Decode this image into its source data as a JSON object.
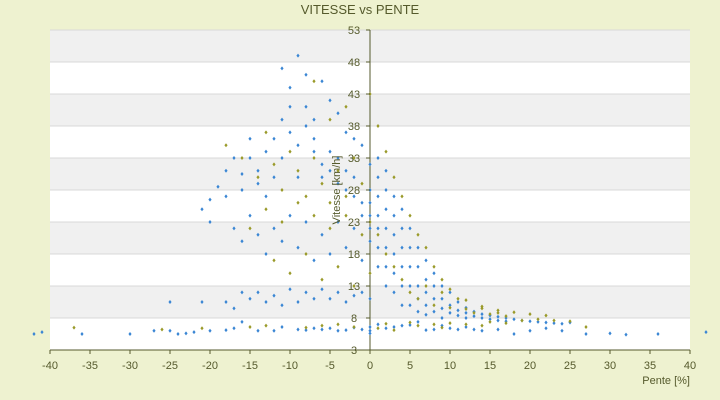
{
  "chart_data": {
    "type": "scatter",
    "title": "VITESSE vs PENTE",
    "xlabel": "Pente [%]",
    "ylabel": "Vitesse [km/h]",
    "xlim": [
      -40,
      40
    ],
    "ylim": [
      3,
      53
    ],
    "x_ticks": [
      -40,
      -35,
      -30,
      -25,
      -20,
      -15,
      -10,
      -5,
      0,
      5,
      10,
      15,
      20,
      25,
      30,
      35,
      40
    ],
    "y_ticks": [
      3,
      8,
      13,
      18,
      23,
      28,
      33,
      38,
      43,
      48,
      53
    ],
    "grid": true,
    "legend": "none",
    "colors": {
      "series_a": "#3a86d4",
      "series_b": "#9a9a2a",
      "band": "#f0f0f0",
      "plot_bg": "#ffffff",
      "page_bg": "#eef2d0",
      "axis": "#555a2c"
    },
    "series": [
      {
        "color": "#3a86d4",
        "points": [
          [
            -42,
            5.5
          ],
          [
            -41,
            5.8
          ],
          [
            -36,
            5.5
          ],
          [
            -30,
            5.5
          ],
          [
            -27,
            6
          ],
          [
            -25,
            6
          ],
          [
            -24,
            5.5
          ],
          [
            -23,
            5.6
          ],
          [
            -22,
            5.8
          ],
          [
            -20,
            6
          ],
          [
            -18,
            6.1
          ],
          [
            -17,
            6.4
          ],
          [
            -16,
            7.4
          ],
          [
            -14,
            6
          ],
          [
            -12,
            6
          ],
          [
            -11,
            6.6
          ],
          [
            -9,
            6.2
          ],
          [
            -8,
            6.1
          ],
          [
            -7,
            6.4
          ],
          [
            -6,
            6.2
          ],
          [
            -5,
            6.4
          ],
          [
            -4,
            6
          ],
          [
            -3,
            6.1
          ],
          [
            -2,
            6.5
          ],
          [
            -1,
            6.2
          ],
          [
            0,
            6
          ],
          [
            0,
            5.6
          ],
          [
            0,
            6.6
          ],
          [
            1,
            7
          ],
          [
            2,
            6.4
          ],
          [
            3,
            6.6
          ],
          [
            4,
            6.8
          ],
          [
            5,
            6.9
          ],
          [
            6,
            7.4
          ],
          [
            7,
            6.1
          ],
          [
            8,
            6.2
          ],
          [
            9,
            6.8
          ],
          [
            10,
            6.4
          ],
          [
            11,
            6.2
          ],
          [
            12,
            6.6
          ],
          [
            13,
            6.2
          ],
          [
            14,
            6
          ],
          [
            16,
            6.2
          ],
          [
            18,
            5.5
          ],
          [
            20,
            6
          ],
          [
            22,
            6.4
          ],
          [
            24,
            6
          ],
          [
            27,
            5.5
          ],
          [
            30,
            5.6
          ],
          [
            32,
            5.4
          ],
          [
            36,
            5.5
          ],
          [
            42,
            5.8
          ],
          [
            -25,
            10.5
          ],
          [
            -21,
            10.5
          ],
          [
            -18,
            10.5
          ],
          [
            -17,
            9.5
          ],
          [
            -16,
            12
          ],
          [
            -15,
            11
          ],
          [
            -14,
            12
          ],
          [
            -13,
            10.5
          ],
          [
            -12,
            11.5
          ],
          [
            -11,
            10
          ],
          [
            -10,
            12.5
          ],
          [
            -9,
            10.5
          ],
          [
            -8,
            12
          ],
          [
            -7,
            11
          ],
          [
            -6,
            12.5
          ],
          [
            -5,
            11
          ],
          [
            -4,
            12
          ],
          [
            -3,
            10.5
          ],
          [
            -2,
            11.5
          ],
          [
            -1,
            12
          ],
          [
            0,
            11
          ],
          [
            -21,
            25
          ],
          [
            -20,
            26.5
          ],
          [
            -20,
            23
          ],
          [
            -19,
            28.5
          ],
          [
            -18,
            27
          ],
          [
            -18,
            31
          ],
          [
            -17,
            33
          ],
          [
            -16,
            28
          ],
          [
            -16,
            30.5
          ],
          [
            -15,
            33
          ],
          [
            -15,
            36
          ],
          [
            -14,
            31
          ],
          [
            -14,
            29
          ],
          [
            -13,
            34
          ],
          [
            -13,
            27
          ],
          [
            -12,
            30
          ],
          [
            -12,
            36
          ],
          [
            -11,
            33
          ],
          [
            -11,
            39
          ],
          [
            -10,
            37
          ],
          [
            -10,
            41
          ],
          [
            -10,
            44
          ],
          [
            -9,
            35
          ],
          [
            -9,
            30
          ],
          [
            -8,
            41
          ],
          [
            -8,
            38
          ],
          [
            -7,
            36
          ],
          [
            -7,
            34
          ],
          [
            -6,
            32
          ],
          [
            -6,
            30
          ],
          [
            -5,
            34
          ],
          [
            -5,
            31
          ],
          [
            -4,
            33
          ],
          [
            -4,
            29
          ],
          [
            -3,
            31
          ],
          [
            -3,
            28
          ],
          [
            -2,
            30
          ],
          [
            -2,
            27
          ],
          [
            -1,
            26
          ],
          [
            -1,
            24
          ],
          [
            -17,
            22
          ],
          [
            -16,
            20
          ],
          [
            -15,
            24
          ],
          [
            -14,
            21
          ],
          [
            -13,
            18
          ],
          [
            -12,
            22
          ],
          [
            -11,
            20
          ],
          [
            -10,
            24
          ],
          [
            -9,
            19
          ],
          [
            -8,
            23
          ],
          [
            -7,
            17
          ],
          [
            -6,
            21
          ],
          [
            -5,
            18
          ],
          [
            -4,
            23
          ],
          [
            -3,
            19
          ],
          [
            -2,
            22
          ],
          [
            -1,
            17
          ],
          [
            -9,
            49
          ],
          [
            -11,
            47
          ],
          [
            -8,
            46
          ],
          [
            -6,
            45
          ],
          [
            -5,
            42
          ],
          [
            -4,
            40
          ],
          [
            -7,
            39
          ],
          [
            -3,
            37
          ],
          [
            -2,
            36
          ],
          [
            -1,
            35
          ],
          [
            0,
            32
          ],
          [
            0,
            28
          ],
          [
            0,
            26
          ],
          [
            0,
            24
          ],
          [
            0,
            22
          ],
          [
            0,
            20
          ],
          [
            1,
            33
          ],
          [
            1,
            30
          ],
          [
            1,
            27
          ],
          [
            1,
            24
          ],
          [
            1,
            22
          ],
          [
            1,
            19
          ],
          [
            1,
            16
          ],
          [
            2,
            31
          ],
          [
            2,
            28
          ],
          [
            2,
            25
          ],
          [
            2,
            22
          ],
          [
            2,
            19
          ],
          [
            2,
            16
          ],
          [
            2,
            13
          ],
          [
            3,
            27
          ],
          [
            3,
            24
          ],
          [
            3,
            21
          ],
          [
            3,
            18
          ],
          [
            3,
            15
          ],
          [
            3,
            12
          ],
          [
            4,
            25
          ],
          [
            4,
            22
          ],
          [
            4,
            19
          ],
          [
            4,
            16
          ],
          [
            4,
            13
          ],
          [
            4,
            10
          ],
          [
            5,
            22
          ],
          [
            5,
            19
          ],
          [
            5,
            16
          ],
          [
            5,
            13
          ],
          [
            5,
            10
          ],
          [
            6,
            19
          ],
          [
            6,
            16
          ],
          [
            6,
            13
          ],
          [
            6,
            11
          ],
          [
            6,
            9
          ],
          [
            7,
            17
          ],
          [
            7,
            14
          ],
          [
            7,
            12
          ],
          [
            7,
            10
          ],
          [
            7,
            8.5
          ],
          [
            8,
            15
          ],
          [
            8,
            13
          ],
          [
            8,
            11
          ],
          [
            8,
            9
          ],
          [
            9,
            13
          ],
          [
            9,
            11
          ],
          [
            9,
            9.5
          ],
          [
            9,
            8
          ],
          [
            10,
            12
          ],
          [
            10,
            10
          ],
          [
            10,
            8.8
          ],
          [
            11,
            10.5
          ],
          [
            11,
            9.2
          ],
          [
            11,
            8.4
          ],
          [
            12,
            9.6
          ],
          [
            12,
            8.8
          ],
          [
            12,
            8
          ],
          [
            13,
            9
          ],
          [
            13,
            8.3
          ],
          [
            14,
            8.6
          ],
          [
            14,
            8
          ],
          [
            15,
            8.4
          ],
          [
            15,
            7.8
          ],
          [
            16,
            8.2
          ],
          [
            16,
            7.6
          ],
          [
            17,
            8
          ],
          [
            17,
            7.5
          ],
          [
            18,
            7.8
          ],
          [
            19,
            7.6
          ],
          [
            20,
            7.5
          ],
          [
            21,
            7.4
          ],
          [
            22,
            7.3
          ],
          [
            23,
            7.2
          ],
          [
            24,
            7.1
          ],
          [
            25,
            7.3
          ]
        ]
      },
      {
        "color": "#9a9a2a",
        "points": [
          [
            -37,
            6.5
          ],
          [
            -26,
            6.2
          ],
          [
            -21,
            6.4
          ],
          [
            -15,
            6.6
          ],
          [
            -13,
            6.8
          ],
          [
            -8,
            6.5
          ],
          [
            -6,
            6.8
          ],
          [
            -4,
            7
          ],
          [
            -2,
            6.6
          ],
          [
            1,
            6.4
          ],
          [
            2,
            7.1
          ],
          [
            3,
            6.1
          ],
          [
            5,
            7.3
          ],
          [
            6,
            6.8
          ],
          [
            8,
            7
          ],
          [
            9,
            6.5
          ],
          [
            10,
            7.2
          ],
          [
            12,
            7
          ],
          [
            14,
            6.8
          ],
          [
            15,
            7.4
          ],
          [
            17,
            7.2
          ],
          [
            19,
            7.6
          ],
          [
            21,
            7.8
          ],
          [
            23,
            7.6
          ],
          [
            25,
            7.5
          ],
          [
            27,
            6.6
          ],
          [
            -18,
            35
          ],
          [
            -16,
            33
          ],
          [
            -14,
            30
          ],
          [
            -13,
            37
          ],
          [
            -12,
            32
          ],
          [
            -11,
            28
          ],
          [
            -10,
            34
          ],
          [
            -9,
            31
          ],
          [
            -8,
            27
          ],
          [
            -7,
            33
          ],
          [
            -6,
            29
          ],
          [
            -5,
            26
          ],
          [
            -4,
            31
          ],
          [
            -3,
            27
          ],
          [
            -2,
            33
          ],
          [
            -1,
            29
          ],
          [
            0,
            23
          ],
          [
            1,
            21
          ],
          [
            2,
            18
          ],
          [
            3,
            16
          ],
          [
            4,
            14
          ],
          [
            5,
            12
          ],
          [
            6,
            11
          ],
          [
            7,
            13
          ],
          [
            8,
            10
          ],
          [
            9,
            12
          ],
          [
            10,
            9.6
          ],
          [
            11,
            11
          ],
          [
            12,
            9.4
          ],
          [
            13,
            8.8
          ],
          [
            14,
            9.5
          ],
          [
            15,
            8.6
          ],
          [
            16,
            8.8
          ],
          [
            17,
            8.3
          ],
          [
            -15,
            22
          ],
          [
            -13,
            25
          ],
          [
            -11,
            23
          ],
          [
            -9,
            26
          ],
          [
            -7,
            24
          ],
          [
            -5,
            22
          ],
          [
            -3,
            24
          ],
          [
            -1,
            21
          ],
          [
            -12,
            17
          ],
          [
            -10,
            15
          ],
          [
            -8,
            18
          ],
          [
            -6,
            14
          ],
          [
            -4,
            16
          ],
          [
            -2,
            13
          ],
          [
            0,
            15
          ],
          [
            0,
            43
          ],
          [
            -7,
            45
          ],
          [
            -5,
            39
          ],
          [
            -3,
            41
          ],
          [
            1,
            38
          ],
          [
            2,
            34
          ],
          [
            3,
            30
          ],
          [
            4,
            27
          ],
          [
            5,
            24
          ],
          [
            6,
            21
          ],
          [
            7,
            19
          ],
          [
            8,
            16
          ],
          [
            9,
            14
          ],
          [
            10,
            12.5
          ],
          [
            12,
            10.8
          ],
          [
            14,
            9.8
          ],
          [
            16,
            9.2
          ],
          [
            18,
            8.9
          ],
          [
            20,
            8.6
          ],
          [
            22,
            8.4
          ]
        ]
      }
    ]
  }
}
